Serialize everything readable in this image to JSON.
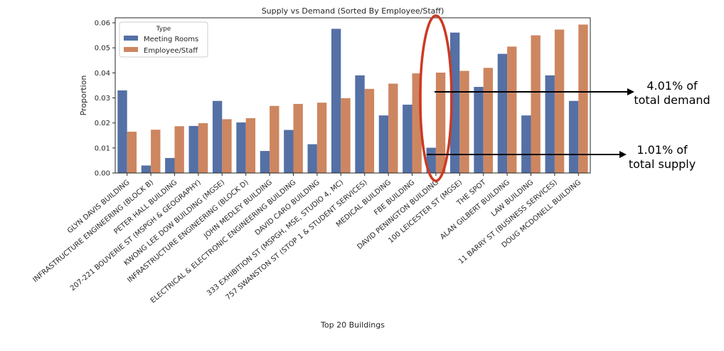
{
  "colors": {
    "meeting": "#5470a5",
    "employee": "#cd8660",
    "highlight": "#cc3a22"
  },
  "chart_data": {
    "type": "bar",
    "title": "Supply vs Demand (Sorted By Employee/Staff)",
    "xlabel": "Top 20 Buildings",
    "ylabel": "Proportion",
    "ylim": [
      0,
      0.062
    ],
    "yticks": [
      "0.00",
      "0.01",
      "0.02",
      "0.03",
      "0.04",
      "0.05",
      "0.06"
    ],
    "grid": false,
    "legend": {
      "title": "Type",
      "placement": "top-left"
    },
    "categories": [
      "GLYN DAVIS BUILDING",
      "INFRASTRUCTURE ENGINEERING (BLOCK B)",
      "PETER HALL BUILDING",
      "207-221 BOUVERIE ST (MSPGH & GEOGRAPHY)",
      "KWONG LEE DOW BUILDING (MGSE)",
      "INFRASTRUCTURE ENGINEERING (BLOCK D)",
      "JOHN MEDLEY BUILDING",
      "ELECTRICAL & ELECTRONIC ENGINEERING BUILDING",
      "DAVID CARO BUILDING",
      "333 EXHIBITION ST (MSPGH, MSE, STUDIO 4, MC)",
      "757 SWANSTON ST (STOP 1 & STUDENT SERVICES)",
      "MEDICAL BUILDING",
      "FBE BUILDING",
      "DAVID PENINGTON BUILDING",
      "100 LEICESTER ST (MGSE)",
      "THE SPOT",
      "ALAN GILBERT BUILDING",
      "LAW BUILDING",
      "11 BARRY ST (BUSINESS SERVICES)",
      "DOUG MCDONELL BUILDING"
    ],
    "series": [
      {
        "name": "Meeting Rooms",
        "values": [
          0.033,
          0.003,
          0.006,
          0.0188,
          0.0288,
          0.0202,
          0.0088,
          0.0172,
          0.0115,
          0.0576,
          0.039,
          0.023,
          0.0273,
          0.0101,
          0.0561,
          0.0344,
          0.0476,
          0.023,
          0.039,
          0.0288
        ]
      },
      {
        "name": "Employee/Staff",
        "values": [
          0.0165,
          0.0173,
          0.0187,
          0.0199,
          0.0215,
          0.0219,
          0.0268,
          0.0276,
          0.0281,
          0.0299,
          0.0336,
          0.0357,
          0.0398,
          0.0401,
          0.0408,
          0.042,
          0.0505,
          0.055,
          0.0573,
          0.0593
        ]
      }
    ],
    "annotations": [
      {
        "text_line1": "4.01% of",
        "text_line2": "total demand"
      },
      {
        "text_line1": "1.01% of",
        "text_line2": "total supply"
      }
    ]
  }
}
